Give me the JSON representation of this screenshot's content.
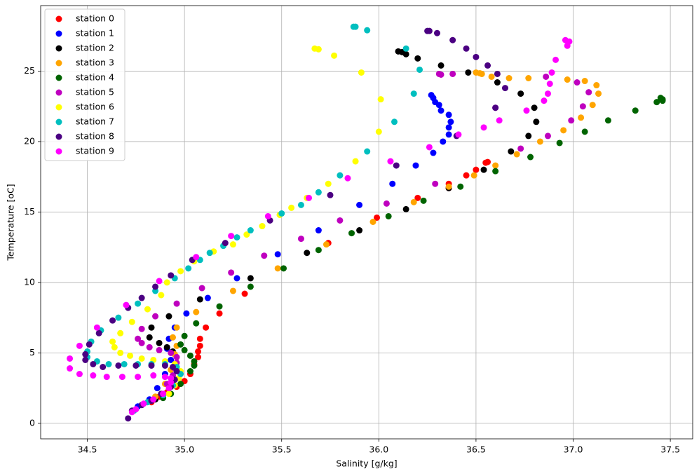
{
  "chart_data": {
    "type": "scatter",
    "x_label": "Salinity [g/kg]",
    "y_label": "Temperature [oC]",
    "xlim": [
      34.26,
      37.615
    ],
    "ylim": [
      -1.1,
      29.65
    ],
    "xticks": [
      34.5,
      {
        "value": 35,
        "label": "35.0"
      },
      35.5,
      {
        "value": 36,
        "label": "36.0"
      },
      36.5,
      {
        "value": 37,
        "label": "37.0"
      },
      37.5
    ],
    "yticks": [
      0,
      5,
      10,
      15,
      20,
      25
    ],
    "grid": true,
    "legend": "upper-left",
    "series": [
      {
        "name": "station 0",
        "color": "#ff0000",
        "x": [
          36.45,
          36.5,
          36.55,
          36.56,
          36.36,
          36.36,
          36.2,
          35.99,
          35.74,
          35.31,
          35.18,
          35.11,
          35.08,
          35.08,
          35.07,
          35.07,
          35.05,
          35.03,
          35.0,
          34.96,
          34.91,
          34.87,
          34.83
        ],
        "values": [
          17.6,
          18.0,
          18.5,
          18.55,
          17.0,
          16.7,
          16.0,
          14.6,
          12.8,
          9.2,
          7.8,
          6.8,
          6.0,
          5.5,
          5.1,
          4.7,
          4.2,
          3.5,
          3.0,
          2.6,
          2.2,
          1.9,
          1.5
        ]
      },
      {
        "name": "station 1",
        "color": "#0000ff",
        "x": [
          36.27,
          36.28,
          36.29,
          36.31,
          36.32,
          36.36,
          36.37,
          36.36,
          36.36,
          36.33,
          36.28,
          36.19,
          36.07,
          35.9,
          35.69,
          35.48,
          35.27,
          35.12,
          35.01,
          34.95,
          34.92,
          34.91,
          34.93,
          34.9,
          34.86,
          34.82,
          34.76
        ],
        "values": [
          23.3,
          23.1,
          22.8,
          22.6,
          22.2,
          21.9,
          21.4,
          21.0,
          20.5,
          20.0,
          19.2,
          18.3,
          17.0,
          15.5,
          13.7,
          12.0,
          10.3,
          8.9,
          7.8,
          6.8,
          6.0,
          5.3,
          4.5,
          3.5,
          2.5,
          1.7,
          1.2
        ]
      },
      {
        "name": "station 2",
        "color": "#000000",
        "x": [
          36.1,
          36.12,
          36.14,
          36.2,
          36.32,
          36.46,
          36.61,
          36.73,
          36.8,
          36.81,
          36.77,
          36.68,
          36.54,
          36.36,
          36.14,
          35.9,
          35.63,
          35.34,
          35.08,
          34.92,
          34.83,
          34.82,
          34.87,
          34.91,
          34.94,
          34.95,
          34.92,
          34.85
        ],
        "values": [
          26.4,
          26.35,
          26.2,
          25.9,
          25.4,
          24.9,
          24.2,
          23.4,
          22.4,
          21.4,
          20.4,
          19.3,
          18.0,
          16.7,
          15.2,
          13.7,
          12.1,
          10.3,
          8.8,
          7.6,
          6.8,
          6.1,
          5.7,
          5.4,
          5.1,
          4.0,
          2.8,
          1.7
        ]
      },
      {
        "name": "station 3",
        "color": "#ffa500",
        "x": [
          36.5,
          36.52,
          36.53,
          36.58,
          36.67,
          36.77,
          36.97,
          37.06,
          37.12,
          37.13,
          37.1,
          37.04,
          36.95,
          36.83,
          36.71,
          36.6,
          36.49,
          36.36,
          36.18,
          35.97,
          35.73,
          35.48,
          35.25,
          35.06,
          34.96,
          34.94,
          34.96,
          34.95,
          34.93,
          34.9,
          34.85
        ],
        "values": [
          24.9,
          24.85,
          24.8,
          24.6,
          24.5,
          24.5,
          24.4,
          24.3,
          24.0,
          23.4,
          22.6,
          21.7,
          20.8,
          20.0,
          19.1,
          18.3,
          17.6,
          16.8,
          15.7,
          14.3,
          12.7,
          11.0,
          9.4,
          7.9,
          6.8,
          6.1,
          5.5,
          4.9,
          3.8,
          2.8,
          1.9
        ]
      },
      {
        "name": "station 4",
        "color": "#006400",
        "x": [
          37.46,
          37.45,
          37.46,
          37.43,
          37.32,
          37.18,
          37.06,
          36.93,
          36.78,
          36.6,
          36.42,
          36.23,
          36.05,
          35.86,
          35.69,
          35.51,
          35.34,
          35.18,
          35.06,
          35.0,
          34.98,
          35.0,
          35.03,
          35.05,
          35.05,
          35.03,
          34.98,
          34.93,
          34.89
        ],
        "values": [
          23.0,
          23.1,
          22.9,
          22.8,
          22.2,
          21.5,
          20.7,
          19.9,
          18.9,
          17.9,
          16.8,
          15.8,
          14.7,
          13.5,
          12.3,
          11.0,
          9.7,
          8.3,
          7.1,
          6.2,
          5.6,
          5.2,
          4.8,
          4.4,
          4.1,
          3.7,
          2.8,
          2.1,
          1.8
        ]
      },
      {
        "name": "station 5",
        "color": "#bf00bf",
        "x": [
          36.31,
          36.32,
          36.38,
          36.6,
          36.73,
          36.87,
          36.99,
          37.05,
          37.08,
          37.02,
          36.86,
          36.29,
          36.04,
          35.8,
          35.6,
          35.41,
          35.24,
          35.09,
          34.96,
          34.85,
          34.78,
          34.76,
          34.78,
          34.82,
          34.87,
          34.93,
          34.96,
          34.96,
          34.95,
          34.94,
          34.91
        ],
        "values": [
          24.8,
          24.75,
          24.8,
          22.4,
          19.5,
          20.4,
          21.5,
          22.5,
          23.5,
          24.2,
          24.6,
          17.0,
          15.6,
          14.4,
          13.1,
          11.9,
          10.7,
          9.6,
          8.5,
          7.6,
          6.7,
          6.0,
          5.7,
          5.4,
          5.2,
          5.0,
          4.7,
          4.3,
          3.9,
          3.4,
          2.8
        ]
      },
      {
        "name": "station 6",
        "color": "#ffff00",
        "x": [
          35.67,
          35.69,
          35.77,
          35.91,
          36.01,
          36.0,
          35.88,
          35.74,
          35.63,
          35.55,
          35.49,
          35.4,
          35.32,
          35.25,
          35.15,
          35.05,
          34.98,
          34.91,
          34.88,
          34.81,
          34.73,
          34.67,
          34.63,
          34.64,
          34.67,
          34.72,
          34.78,
          34.84,
          34.9,
          34.95,
          34.98,
          34.97,
          34.95,
          34.92
        ],
        "values": [
          26.6,
          26.55,
          26.1,
          24.9,
          23.0,
          20.7,
          18.6,
          17.0,
          16.0,
          15.3,
          14.8,
          14.0,
          13.4,
          12.7,
          12.2,
          11.5,
          10.8,
          10.0,
          9.1,
          8.1,
          7.2,
          6.4,
          5.8,
          5.4,
          5.0,
          4.8,
          4.6,
          4.5,
          4.4,
          4.2,
          3.7,
          3.2,
          2.7,
          2.1
        ]
      },
      {
        "name": "station 7",
        "color": "#00bfbf",
        "x": [
          35.87,
          35.88,
          35.94,
          36.14,
          36.21,
          36.18,
          36.08,
          35.94,
          35.8,
          35.69,
          35.6,
          35.5,
          35.34,
          35.27,
          35.2,
          35.13,
          35.08,
          35.02,
          34.95,
          34.85,
          34.76,
          34.66,
          34.57,
          34.52,
          34.5,
          34.5,
          34.55,
          34.61,
          34.69,
          34.76,
          34.83,
          34.9,
          34.96,
          34.98,
          34.94,
          34.89,
          34.81,
          34.74
        ],
        "values": [
          28.15,
          28.15,
          27.9,
          26.6,
          25.1,
          23.4,
          21.4,
          19.3,
          17.6,
          16.4,
          15.5,
          14.9,
          13.7,
          13.2,
          12.6,
          12.1,
          11.6,
          11.0,
          10.3,
          9.4,
          8.5,
          7.5,
          6.6,
          5.8,
          5.1,
          4.7,
          4.4,
          4.2,
          4.2,
          4.2,
          4.2,
          4.2,
          4.0,
          3.5,
          2.7,
          2.0,
          1.5,
          0.9
        ]
      },
      {
        "name": "station 8",
        "color": "#4b0082",
        "x": [
          36.25,
          36.26,
          36.3,
          36.38,
          36.45,
          36.5,
          36.56,
          36.61,
          36.65,
          36.6,
          36.4,
          36.09,
          35.75,
          35.44,
          35.21,
          35.04,
          34.93,
          34.85,
          34.78,
          34.71,
          34.63,
          34.56,
          34.51,
          34.49,
          34.49,
          34.53,
          34.58,
          34.66,
          34.75,
          34.83,
          34.9,
          34.94,
          34.96,
          34.95,
          34.93,
          34.88,
          34.83,
          34.78,
          34.73,
          34.71
        ],
        "values": [
          27.85,
          27.85,
          27.7,
          27.2,
          26.6,
          26.0,
          25.4,
          24.8,
          23.8,
          22.4,
          20.4,
          18.3,
          16.2,
          14.4,
          12.8,
          11.6,
          10.5,
          9.7,
          8.9,
          8.2,
          7.3,
          6.4,
          5.6,
          4.9,
          4.5,
          4.2,
          4.0,
          4.1,
          4.1,
          4.1,
          4.1,
          4.0,
          3.7,
          3.1,
          2.6,
          2.1,
          1.6,
          1.3,
          0.9,
          0.35
        ]
      },
      {
        "name": "station 9",
        "color": "#ff00ff",
        "x": [
          36.96,
          36.98,
          36.97,
          36.91,
          36.89,
          36.88,
          36.87,
          36.85,
          36.76,
          36.62,
          36.54,
          36.41,
          36.26,
          36.06,
          35.84,
          35.64,
          35.43,
          35.24,
          35.06,
          34.87,
          34.7,
          34.55,
          34.46,
          34.41,
          34.41,
          34.46,
          34.53,
          34.6,
          34.68,
          34.76,
          34.84,
          34.9,
          34.93,
          34.93,
          34.92,
          34.89,
          34.84,
          34.79,
          34.75,
          34.73
        ],
        "values": [
          27.2,
          27.1,
          26.8,
          25.8,
          24.9,
          24.1,
          23.4,
          22.9,
          22.2,
          21.5,
          21.0,
          20.5,
          19.6,
          18.6,
          17.4,
          16.0,
          14.7,
          13.3,
          11.8,
          10.1,
          8.4,
          6.8,
          5.5,
          4.6,
          3.9,
          3.5,
          3.4,
          3.3,
          3.3,
          3.3,
          3.4,
          3.3,
          3.2,
          2.9,
          2.5,
          2.1,
          1.7,
          1.4,
          1.0,
          0.8
        ]
      }
    ]
  }
}
